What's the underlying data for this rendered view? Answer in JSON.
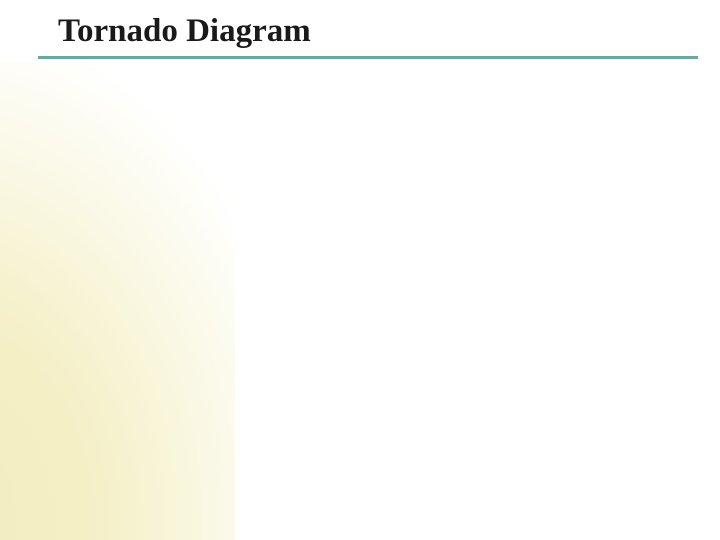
{
  "slide": {
    "title": "Tornado Diagram",
    "title_fontsize": 33,
    "title_fontweight": "bold",
    "title_color": "#1a1a1a",
    "underline_color": "#6aa9a0",
    "underline_height": 3,
    "background_color": "#ffffff",
    "accent_gradient_inner": "#f2edc0",
    "accent_gradient_outer": "#ffffff"
  }
}
